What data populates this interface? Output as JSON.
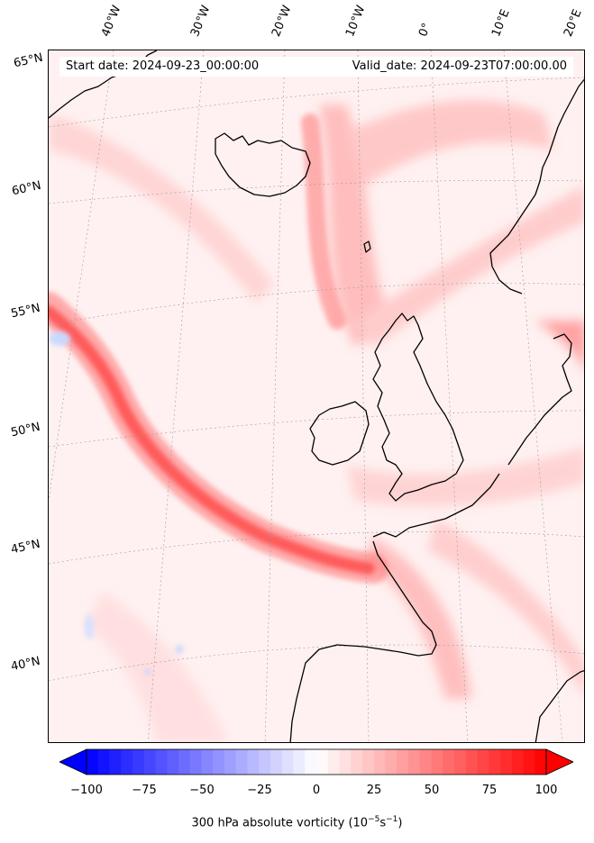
{
  "header": {
    "start_date": "Start date: 2024-09-23_00:00:00",
    "valid_date": "Valid_date: 2024-09-23T07:00:00.00"
  },
  "map": {
    "lon_labels": [
      "40°W",
      "30°W",
      "20°W",
      "10°W",
      "0°",
      "10°E",
      "20°E"
    ],
    "lat_labels": [
      "65°N",
      "60°N",
      "55°N",
      "50°N",
      "45°N",
      "40°N"
    ],
    "coastline_color": "#000000",
    "gridline_color": "#9a9a9a"
  },
  "colorbar": {
    "label_prefix": "300 hPa absolute vorticity (10",
    "label_exp1": "−5",
    "label_mid": "s",
    "label_exp2": "−1",
    "label_suffix": ")",
    "ticks": [
      "−100",
      "−75",
      "−50",
      "−25",
      "0",
      "25",
      "50",
      "75",
      "100"
    ],
    "tick_values": [
      -100,
      -75,
      -50,
      -25,
      0,
      25,
      50,
      75,
      100
    ],
    "range": [
      -100,
      100
    ],
    "min_color": "#0000ff",
    "mid_color": "#ffffff",
    "max_color": "#ff0000"
  }
}
